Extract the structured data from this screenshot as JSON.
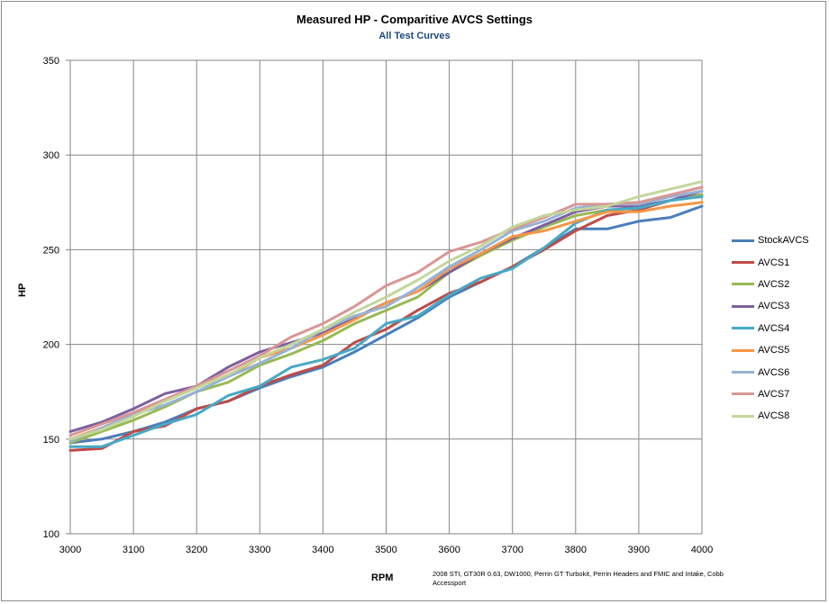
{
  "chart_data": {
    "type": "line",
    "title": "Measured HP - Comparitive AVCS Settings",
    "subtitle": "All Test Curves",
    "xlabel": "RPM",
    "ylabel": "HP",
    "xlim": [
      3000,
      4000
    ],
    "ylim": [
      100,
      350
    ],
    "xticks": [
      3000,
      3100,
      3200,
      3300,
      3400,
      3500,
      3600,
      3700,
      3800,
      3900,
      4000
    ],
    "yticks": [
      100,
      150,
      200,
      250,
      300,
      350
    ],
    "note": "2008 STI, GT30R 0.63, DW1000, Perrin GT Turbokit, Perrin Headers and FMIC and Intake, Cobb Accessport",
    "legend_position": "right",
    "series": [
      {
        "name": "StockAVCS",
        "color": "#4a7ebb",
        "x": [
          3000,
          3050,
          3100,
          3150,
          3200,
          3250,
          3300,
          3350,
          3400,
          3450,
          3500,
          3550,
          3600,
          3650,
          3700,
          3750,
          3800,
          3850,
          3900,
          3950,
          4000
        ],
        "y": [
          148,
          150,
          154,
          159,
          166,
          170,
          177,
          183,
          188,
          196,
          205,
          214,
          225,
          233,
          241,
          251,
          261,
          261,
          265,
          267,
          273
        ]
      },
      {
        "name": "AVCS1",
        "color": "#be4b48",
        "x": [
          3000,
          3050,
          3100,
          3150,
          3200,
          3250,
          3300,
          3350,
          3400,
          3450,
          3500,
          3550,
          3600,
          3650,
          3700,
          3750,
          3800,
          3850,
          3900,
          3950,
          4000
        ],
        "y": [
          144,
          145,
          154,
          157,
          166,
          170,
          178,
          184,
          189,
          201,
          208,
          218,
          227,
          233,
          241,
          250,
          260,
          268,
          271,
          276,
          279
        ]
      },
      {
        "name": "AVCS2",
        "color": "#98b954",
        "x": [
          3000,
          3050,
          3100,
          3150,
          3200,
          3250,
          3300,
          3350,
          3400,
          3450,
          3500,
          3550,
          3600,
          3650,
          3700,
          3750,
          3800,
          3850,
          3900,
          3950,
          4000
        ],
        "y": [
          148,
          154,
          160,
          167,
          175,
          180,
          189,
          195,
          202,
          211,
          218,
          225,
          238,
          247,
          255,
          262,
          268,
          271,
          272,
          276,
          279
        ]
      },
      {
        "name": "AVCS3",
        "color": "#7d60a0",
        "x": [
          3000,
          3050,
          3100,
          3150,
          3200,
          3250,
          3300,
          3350,
          3400,
          3450,
          3500,
          3550,
          3600,
          3650,
          3700,
          3750,
          3800,
          3850,
          3900,
          3950,
          4000
        ],
        "y": [
          154,
          159,
          166,
          174,
          178,
          188,
          196,
          201,
          206,
          214,
          222,
          228,
          238,
          248,
          256,
          263,
          270,
          273,
          273,
          276,
          281
        ]
      },
      {
        "name": "AVCS4",
        "color": "#46aac5",
        "x": [
          3000,
          3050,
          3100,
          3150,
          3200,
          3250,
          3300,
          3350,
          3400,
          3450,
          3500,
          3550,
          3600,
          3650,
          3700,
          3750,
          3800,
          3850,
          3900,
          3950,
          4000
        ],
        "y": [
          146,
          146,
          152,
          158,
          163,
          173,
          178,
          188,
          192,
          198,
          211,
          215,
          226,
          235,
          240,
          251,
          264,
          271,
          272,
          276,
          278
        ]
      },
      {
        "name": "AVCS5",
        "color": "#f79646",
        "x": [
          3000,
          3050,
          3100,
          3150,
          3200,
          3250,
          3300,
          3350,
          3400,
          3450,
          3500,
          3550,
          3600,
          3650,
          3700,
          3750,
          3800,
          3850,
          3900,
          3950,
          4000
        ],
        "y": [
          150,
          156,
          163,
          170,
          178,
          183,
          193,
          198,
          205,
          213,
          222,
          228,
          240,
          248,
          257,
          260,
          265,
          270,
          270,
          273,
          275
        ]
      },
      {
        "name": "AVCS6",
        "color": "#95b3d7",
        "x": [
          3000,
          3050,
          3100,
          3150,
          3200,
          3250,
          3300,
          3350,
          3400,
          3450,
          3500,
          3550,
          3600,
          3650,
          3700,
          3750,
          3800,
          3850,
          3900,
          3950,
          4000
        ],
        "y": [
          149,
          156,
          163,
          168,
          175,
          183,
          190,
          198,
          208,
          215,
          220,
          230,
          241,
          250,
          260,
          265,
          272,
          274,
          274,
          278,
          281
        ]
      },
      {
        "name": "AVCS7",
        "color": "#d99694",
        "x": [
          3000,
          3050,
          3100,
          3150,
          3200,
          3250,
          3300,
          3350,
          3400,
          3450,
          3500,
          3550,
          3600,
          3650,
          3700,
          3750,
          3800,
          3850,
          3900,
          3950,
          4000
        ],
        "y": [
          152,
          158,
          164,
          171,
          178,
          186,
          194,
          204,
          211,
          220,
          231,
          238,
          249,
          254,
          261,
          267,
          274,
          274,
          275,
          279,
          283
        ]
      },
      {
        "name": "AVCS8",
        "color": "#c3d69b",
        "x": [
          3000,
          3050,
          3100,
          3150,
          3200,
          3250,
          3300,
          3350,
          3400,
          3450,
          3500,
          3550,
          3600,
          3650,
          3700,
          3750,
          3800,
          3850,
          3900,
          3950,
          4000
        ],
        "y": [
          150,
          155,
          162,
          170,
          177,
          184,
          193,
          200,
          208,
          217,
          225,
          234,
          244,
          252,
          262,
          268,
          271,
          273,
          278,
          282,
          286
        ]
      }
    ]
  }
}
